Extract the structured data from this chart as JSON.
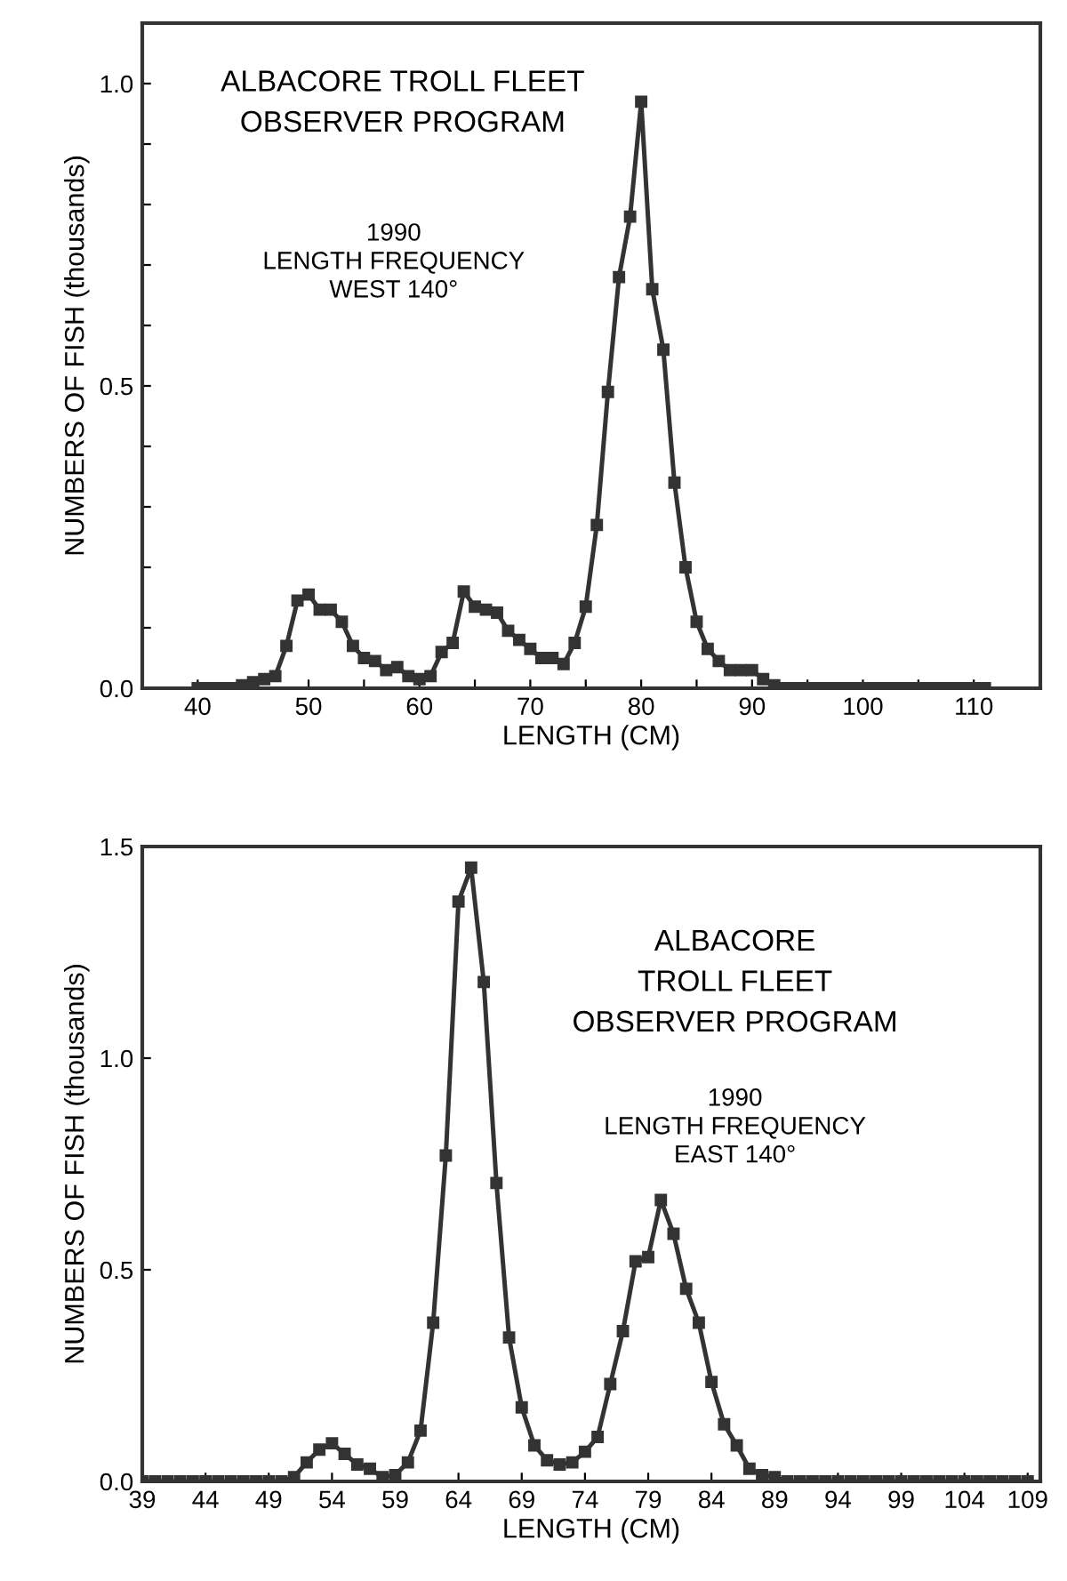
{
  "chart_data": [
    {
      "type": "line",
      "xlabel": "LENGTH (CM)",
      "ylabel": "NUMBERS OF FISH (thousands)",
      "annotations": [
        "ALBACORE TROLL FLEET\nOBSERVER PROGRAM",
        "1990\nLENGTH FREQUENCY\nWEST 140°"
      ],
      "x": [
        40,
        41,
        42,
        43,
        44,
        45,
        46,
        47,
        48,
        49,
        50,
        51,
        52,
        53,
        54,
        55,
        56,
        57,
        58,
        59,
        60,
        61,
        62,
        63,
        64,
        65,
        66,
        67,
        68,
        69,
        70,
        71,
        72,
        73,
        74,
        75,
        76,
        77,
        78,
        79,
        80,
        81,
        82,
        83,
        84,
        85,
        86,
        87,
        88,
        89,
        90,
        91,
        92,
        93,
        94,
        95,
        96,
        97,
        98,
        99,
        100,
        101,
        102,
        103,
        104,
        105,
        106,
        107,
        108,
        109,
        110,
        111
      ],
      "series": [
        {
          "color": "#333333",
          "values": [
            0,
            0,
            0,
            0,
            0.005,
            0.01,
            0.015,
            0.02,
            0.07,
            0.145,
            0.155,
            0.13,
            0.13,
            0.11,
            0.07,
            0.05,
            0.045,
            0.03,
            0.035,
            0.02,
            0.015,
            0.02,
            0.06,
            0.075,
            0.16,
            0.135,
            0.13,
            0.125,
            0.095,
            0.08,
            0.065,
            0.05,
            0.05,
            0.04,
            0.075,
            0.135,
            0.27,
            0.49,
            0.68,
            0.78,
            0.97,
            0.66,
            0.56,
            0.34,
            0.2,
            0.11,
            0.065,
            0.045,
            0.03,
            0.03,
            0.03,
            0.015,
            0.005,
            0,
            0,
            0,
            0,
            0,
            0,
            0,
            0,
            0,
            0,
            0,
            0,
            0,
            0,
            0,
            0,
            0,
            0,
            0
          ]
        }
      ],
      "xlim": [
        35,
        116
      ],
      "ylim": [
        0,
        1.1
      ],
      "xticks": [
        40,
        {
          "value": 45,
          "label": null
        },
        50,
        {
          "value": 55,
          "label": null
        },
        60,
        {
          "value": 65,
          "label": null
        },
        70,
        {
          "value": 75,
          "label": null
        },
        80,
        {
          "value": 85,
          "label": null
        },
        90,
        {
          "value": 95,
          "label": null
        },
        100,
        {
          "value": 105,
          "label": null
        },
        110
      ],
      "yticks": [
        {
          "value": 0,
          "label": "0.0"
        },
        {
          "value": 0.1,
          "label": null
        },
        {
          "value": 0.2,
          "label": null
        },
        {
          "value": 0.3,
          "label": null
        },
        {
          "value": 0.4,
          "label": null
        },
        {
          "value": 0.5,
          "label": "0.5"
        },
        {
          "value": 0.6,
          "label": null
        },
        {
          "value": 0.7,
          "label": null
        },
        {
          "value": 0.8,
          "label": null
        },
        {
          "value": 0.9,
          "label": null
        },
        {
          "value": 1.0,
          "label": "1.0"
        }
      ],
      "marker": "square",
      "line_style": "solid",
      "grid": false,
      "legend": false
    },
    {
      "type": "line",
      "xlabel": "LENGTH (CM)",
      "ylabel": "NUMBERS OF FISH (thousands)",
      "annotations": [
        "ALBACORE\nTROLL FLEET\nOBSERVER PROGRAM",
        "1990\nLENGTH FREQUENCY\nEAST 140°"
      ],
      "x": [
        39,
        40,
        41,
        42,
        43,
        44,
        45,
        46,
        47,
        48,
        49,
        50,
        51,
        52,
        53,
        54,
        55,
        56,
        57,
        58,
        59,
        60,
        61,
        62,
        63,
        64,
        65,
        66,
        67,
        68,
        69,
        70,
        71,
        72,
        73,
        74,
        75,
        76,
        77,
        78,
        79,
        80,
        81,
        82,
        83,
        84,
        85,
        86,
        87,
        88,
        89,
        90,
        91,
        92,
        93,
        94,
        95,
        96,
        97,
        98,
        99,
        100,
        101,
        102,
        103,
        104,
        105,
        106,
        107,
        108,
        109
      ],
      "series": [
        {
          "color": "#333333",
          "values": [
            0,
            0,
            0,
            0,
            0,
            0,
            0,
            0,
            0,
            0,
            0,
            0,
            0.01,
            0.045,
            0.075,
            0.09,
            0.065,
            0.04,
            0.03,
            0.01,
            0.015,
            0.045,
            0.12,
            0.375,
            0.77,
            1.37,
            1.45,
            1.18,
            0.705,
            0.34,
            0.175,
            0.085,
            0.05,
            0.04,
            0.045,
            0.07,
            0.105,
            0.23,
            0.355,
            0.52,
            0.53,
            0.665,
            0.585,
            0.455,
            0.375,
            0.235,
            0.135,
            0.085,
            0.03,
            0.015,
            0.01,
            0,
            0,
            0,
            0,
            0,
            0,
            0,
            0,
            0,
            0,
            0,
            0,
            0,
            0,
            0,
            0,
            0,
            0,
            0,
            0
          ]
        }
      ],
      "xlim": [
        39,
        110
      ],
      "ylim": [
        0,
        1.5
      ],
      "xticks": [
        39,
        44,
        49,
        54,
        59,
        64,
        69,
        74,
        79,
        84,
        89,
        94,
        99,
        104,
        109
      ],
      "yticks": [
        {
          "value": 0,
          "label": "0.0"
        },
        {
          "value": 0.5,
          "label": "0.5"
        },
        {
          "value": 1.0,
          "label": "1.0"
        },
        {
          "value": 1.5,
          "label": "1.5"
        }
      ],
      "marker": "square",
      "line_style": "solid",
      "grid": false,
      "legend": false
    }
  ]
}
